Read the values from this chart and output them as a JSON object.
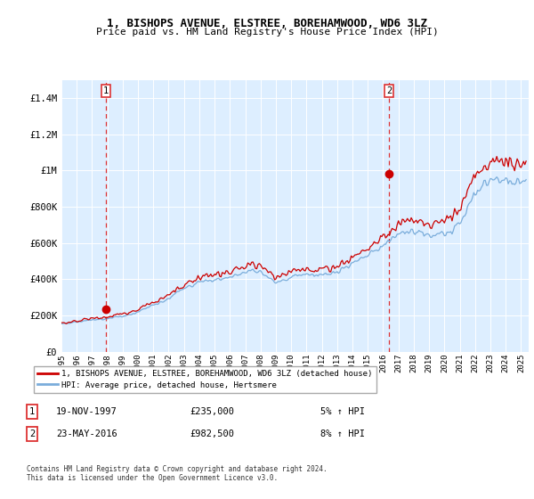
{
  "title": "1, BISHOPS AVENUE, ELSTREE, BOREHAMWOOD, WD6 3LZ",
  "subtitle": "Price paid vs. HM Land Registry's House Price Index (HPI)",
  "xlim": [
    1995.0,
    2025.5
  ],
  "ylim": [
    0,
    1500000
  ],
  "yticks": [
    0,
    200000,
    400000,
    600000,
    800000,
    1000000,
    1200000,
    1400000
  ],
  "ytick_labels": [
    "£0",
    "£200K",
    "£400K",
    "£600K",
    "£800K",
    "£1M",
    "£1.2M",
    "£1.4M"
  ],
  "xtick_years": [
    1995,
    1996,
    1997,
    1998,
    1999,
    2000,
    2001,
    2002,
    2003,
    2004,
    2005,
    2006,
    2007,
    2008,
    2009,
    2010,
    2011,
    2012,
    2013,
    2014,
    2015,
    2016,
    2017,
    2018,
    2019,
    2020,
    2021,
    2022,
    2023,
    2024,
    2025
  ],
  "red_line_color": "#cc0000",
  "blue_line_color": "#7aaddb",
  "marker_color": "#cc0000",
  "vline_color": "#dd3333",
  "plot_bg_color": "#ddeeff",
  "legend_label_red": "1, BISHOPS AVENUE, ELSTREE, BOREHAMWOOD, WD6 3LZ (detached house)",
  "legend_label_blue": "HPI: Average price, detached house, Hertsmere",
  "annotation1_date": "19-NOV-1997",
  "annotation1_price": "£235,000",
  "annotation1_hpi": "5% ↑ HPI",
  "annotation2_date": "23-MAY-2016",
  "annotation2_price": "£982,500",
  "annotation2_hpi": "8% ↑ HPI",
  "footnote": "Contains HM Land Registry data © Crown copyright and database right 2024.\nThis data is licensed under the Open Government Licence v3.0.",
  "point1_year": 1997.89,
  "point1_value": 235000,
  "point2_year": 2016.39,
  "point2_value": 982500
}
